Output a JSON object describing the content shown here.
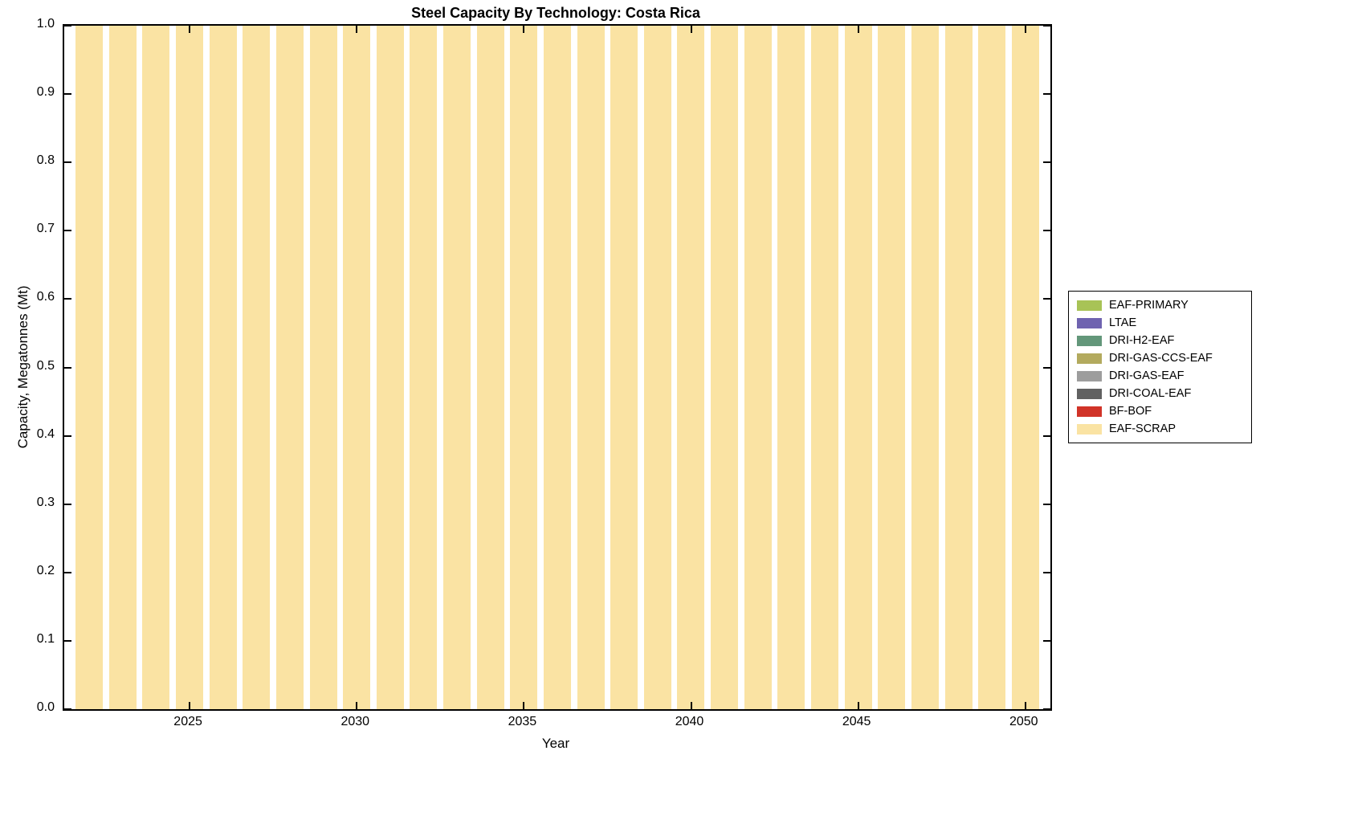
{
  "title": "Steel Capacity By Technology: Costa Rica",
  "chart_data": {
    "type": "bar",
    "stacked": true,
    "title": "Steel Capacity By Technology: Costa Rica",
    "xlabel": "Year",
    "ylabel": "Capacity, Megatonnes (Mt)",
    "xlim": [
      2021.25,
      2050.75
    ],
    "ylim": [
      0.0,
      1.0
    ],
    "bar_width_years": 0.82,
    "grid": false,
    "legend_position": "outside-right",
    "x_ticks": [
      2025,
      2030,
      2035,
      2040,
      2045,
      2050
    ],
    "x_tick_labels": [
      "2025",
      "2030",
      "2035",
      "2040",
      "2045",
      "2050"
    ],
    "y_ticks": [
      0.0,
      0.1,
      0.2,
      0.3,
      0.4,
      0.5,
      0.6,
      0.7,
      0.8,
      0.9,
      1.0
    ],
    "y_tick_labels": [
      "0.0",
      "0.1",
      "0.2",
      "0.3",
      "0.4",
      "0.5",
      "0.6",
      "0.7",
      "0.8",
      "0.9",
      "1.0"
    ],
    "x": [
      2022,
      2023,
      2024,
      2025,
      2026,
      2027,
      2028,
      2029,
      2030,
      2031,
      2032,
      2033,
      2034,
      2035,
      2036,
      2037,
      2038,
      2039,
      2040,
      2041,
      2042,
      2043,
      2044,
      2045,
      2046,
      2047,
      2048,
      2049,
      2050
    ],
    "series": [
      {
        "name": "EAF-SCRAP",
        "color": "#fae3a3",
        "values": [
          1.0,
          1.0,
          1.0,
          1.0,
          1.0,
          1.0,
          1.0,
          1.0,
          1.0,
          1.0,
          1.0,
          1.0,
          1.0,
          1.0,
          1.0,
          1.0,
          1.0,
          1.0,
          1.0,
          1.0,
          1.0,
          1.0,
          1.0,
          1.0,
          1.0,
          1.0,
          1.0,
          1.0,
          1.0
        ]
      },
      {
        "name": "BF-BOF",
        "color": "#d13328",
        "values": [
          0,
          0,
          0,
          0,
          0,
          0,
          0,
          0,
          0,
          0,
          0,
          0,
          0,
          0,
          0,
          0,
          0,
          0,
          0,
          0,
          0,
          0,
          0,
          0,
          0,
          0,
          0,
          0,
          0
        ]
      },
      {
        "name": "DRI-COAL-EAF",
        "color": "#616161",
        "values": [
          0,
          0,
          0,
          0,
          0,
          0,
          0,
          0,
          0,
          0,
          0,
          0,
          0,
          0,
          0,
          0,
          0,
          0,
          0,
          0,
          0,
          0,
          0,
          0,
          0,
          0,
          0,
          0,
          0
        ]
      },
      {
        "name": "DRI-GAS-EAF",
        "color": "#9d9d9d",
        "values": [
          0,
          0,
          0,
          0,
          0,
          0,
          0,
          0,
          0,
          0,
          0,
          0,
          0,
          0,
          0,
          0,
          0,
          0,
          0,
          0,
          0,
          0,
          0,
          0,
          0,
          0,
          0,
          0,
          0
        ]
      },
      {
        "name": "DRI-GAS-CCS-EAF",
        "color": "#b3aa5e",
        "values": [
          0,
          0,
          0,
          0,
          0,
          0,
          0,
          0,
          0,
          0,
          0,
          0,
          0,
          0,
          0,
          0,
          0,
          0,
          0,
          0,
          0,
          0,
          0,
          0,
          0,
          0,
          0,
          0,
          0
        ]
      },
      {
        "name": "DRI-H2-EAF",
        "color": "#63977a",
        "values": [
          0,
          0,
          0,
          0,
          0,
          0,
          0,
          0,
          0,
          0,
          0,
          0,
          0,
          0,
          0,
          0,
          0,
          0,
          0,
          0,
          0,
          0,
          0,
          0,
          0,
          0,
          0,
          0,
          0
        ]
      },
      {
        "name": "LTAE",
        "color": "#6f63b0",
        "values": [
          0,
          0,
          0,
          0,
          0,
          0,
          0,
          0,
          0,
          0,
          0,
          0,
          0,
          0,
          0,
          0,
          0,
          0,
          0,
          0,
          0,
          0,
          0,
          0,
          0,
          0,
          0,
          0,
          0
        ]
      },
      {
        "name": "EAF-PRIMARY",
        "color": "#a8c356",
        "values": [
          0,
          0,
          0,
          0,
          0,
          0,
          0,
          0,
          0,
          0,
          0,
          0,
          0,
          0,
          0,
          0,
          0,
          0,
          0,
          0,
          0,
          0,
          0,
          0,
          0,
          0,
          0,
          0,
          0
        ]
      }
    ],
    "legend": [
      {
        "label": "EAF-PRIMARY",
        "color": "#a8c356"
      },
      {
        "label": "LTAE",
        "color": "#6f63b0"
      },
      {
        "label": "DRI-H2-EAF",
        "color": "#63977a"
      },
      {
        "label": "DRI-GAS-CCS-EAF",
        "color": "#b3aa5e"
      },
      {
        "label": "DRI-GAS-EAF",
        "color": "#9d9d9d"
      },
      {
        "label": "DRI-COAL-EAF",
        "color": "#616161"
      },
      {
        "label": "BF-BOF",
        "color": "#d13328"
      },
      {
        "label": "EAF-SCRAP",
        "color": "#fae3a3"
      }
    ]
  }
}
